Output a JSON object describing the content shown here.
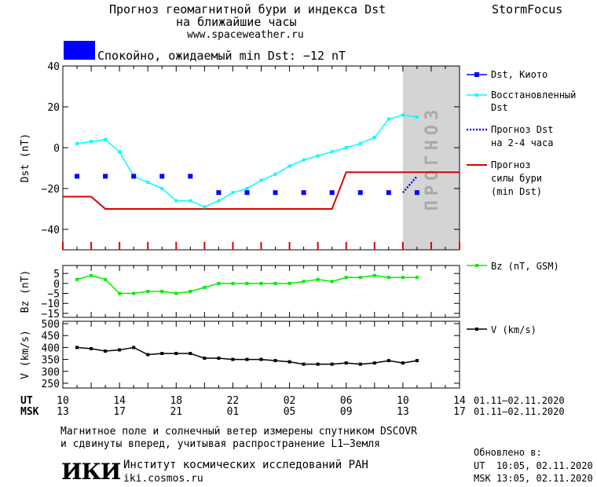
{
  "header": {
    "title_line1": "Прогноз геомагнитной бури и индекса Dst",
    "title_line2": "на ближайшие часы",
    "website": "www.spaceweather.ru",
    "brand": "StormFocus"
  },
  "status": {
    "text": "Спокойно, ожидаемый min Dst: −12 nT",
    "color": "#0000ff"
  },
  "colors": {
    "dst_kyoto": "#0000ff",
    "dst_restored": "#00ffff",
    "dst_forecast": "#0000ff",
    "storm_forecast": "#dd0000",
    "bz": "#00ee00",
    "speed": "#000000",
    "forecast_zone": "#d4d4d4"
  },
  "forecast_label": "ПРОГНОЗ",
  "time_axis": {
    "ut_label": "UT",
    "msk_label": "MSK",
    "ut_ticks": [
      "10",
      "14",
      "18",
      "22",
      "02",
      "06",
      "10",
      "14"
    ],
    "msk_ticks": [
      "13",
      "17",
      "21",
      "01",
      "05",
      "09",
      "13",
      "17"
    ],
    "ut_range": "01.11–02.11.2020",
    "msk_range": "01.11–02.11.2020"
  },
  "chart_data": [
    {
      "type": "line",
      "ylabel": "Dst (nT)",
      "ylim": [
        -50,
        40
      ],
      "yticks": [
        40,
        20,
        0,
        -20,
        -40
      ],
      "xlim": [
        0,
        28
      ],
      "forecast_start": 24,
      "legend": [
        {
          "label": "Dst, Киото"
        },
        {
          "label_lines": [
            "Восстановленный",
            "Dst"
          ]
        },
        {
          "label_lines": [
            "Прогноз Dst",
            "на 2-4 часа"
          ]
        },
        {
          "label_lines": [
            "Прогноз",
            "силы бури",
            "(min Dst)"
          ]
        }
      ],
      "series": [
        {
          "name": "Dst, Киото",
          "style": "squares",
          "x": [
            1,
            3,
            5,
            7,
            9,
            11,
            13,
            15,
            17,
            19,
            21,
            23,
            25
          ],
          "values": [
            -14,
            -14,
            -14,
            -14,
            -14,
            -22,
            -22,
            -22,
            -22,
            -22,
            -22,
            -22,
            -22
          ]
        },
        {
          "name": "Восстановленный Dst",
          "style": "line-markers",
          "x": [
            1,
            2,
            3,
            4,
            5,
            6,
            7,
            8,
            9,
            10,
            11,
            12,
            13,
            14,
            15,
            16,
            17,
            18,
            19,
            20,
            21,
            22,
            23,
            24,
            25
          ],
          "values": [
            2,
            3,
            4,
            -2,
            -14,
            -17,
            -20,
            -26,
            -26,
            -29,
            -26,
            -22,
            -20,
            -16,
            -13,
            -9,
            -6,
            -4,
            -2,
            0,
            2,
            5,
            14,
            16,
            15
          ]
        },
        {
          "name": "Прогноз Dst",
          "style": "dotted",
          "x": [
            24,
            25
          ],
          "values": [
            -22,
            -14
          ]
        },
        {
          "name": "Прогноз силы бури (min Dst)",
          "style": "step",
          "x": [
            0,
            2,
            3,
            19,
            20,
            28
          ],
          "values": [
            -24,
            -24,
            -30,
            -30,
            -12,
            -12
          ]
        }
      ]
    },
    {
      "type": "line",
      "ylabel": "Bz (nT)",
      "legend": "Bz (nT, GSM)",
      "ylim": [
        -17,
        9
      ],
      "yticks": [
        5,
        0,
        -5,
        -10,
        -15
      ],
      "series": [
        {
          "name": "Bz (nT, GSM)",
          "x": [
            1,
            2,
            3,
            4,
            5,
            6,
            7,
            8,
            9,
            10,
            11,
            12,
            13,
            14,
            15,
            16,
            17,
            18,
            19,
            20,
            21,
            22,
            23,
            24,
            25
          ],
          "values": [
            2,
            4,
            2,
            -5,
            -5,
            -4,
            -4,
            -5,
            -4,
            -2,
            0,
            0,
            0,
            0,
            0,
            0,
            1,
            2,
            1,
            3,
            3,
            4,
            3,
            3,
            3
          ]
        }
      ]
    },
    {
      "type": "line",
      "ylabel": "V (km/s)",
      "legend": "V (km/s)",
      "ylim": [
        230,
        510
      ],
      "yticks": [
        500,
        450,
        400,
        350,
        300,
        250
      ],
      "series": [
        {
          "name": "V (km/s)",
          "x": [
            1,
            2,
            3,
            4,
            5,
            6,
            7,
            8,
            9,
            10,
            11,
            12,
            13,
            14,
            15,
            16,
            17,
            18,
            19,
            20,
            21,
            22,
            23,
            24,
            25
          ],
          "values": [
            400,
            395,
            385,
            390,
            400,
            370,
            375,
            375,
            375,
            355,
            355,
            350,
            350,
            350,
            345,
            340,
            330,
            330,
            330,
            335,
            330,
            335,
            345,
            335,
            345
          ]
        }
      ]
    }
  ],
  "footer": {
    "note_line1": "Магнитное поле и солнечный ветер измерены спутником DSCOVR",
    "note_line2": "и сдвинуты вперед, учитывая распространение L1–Земля",
    "logo_text": "ИКИ",
    "institute": "Институт космических исследований РАН",
    "institute_url": "iki.cosmos.ru",
    "updated_label": "Обновлено в:",
    "updated_ut": "UT  10:05, 02.11.2020",
    "updated_msk": "MSK 13:05, 02.11.2020"
  }
}
